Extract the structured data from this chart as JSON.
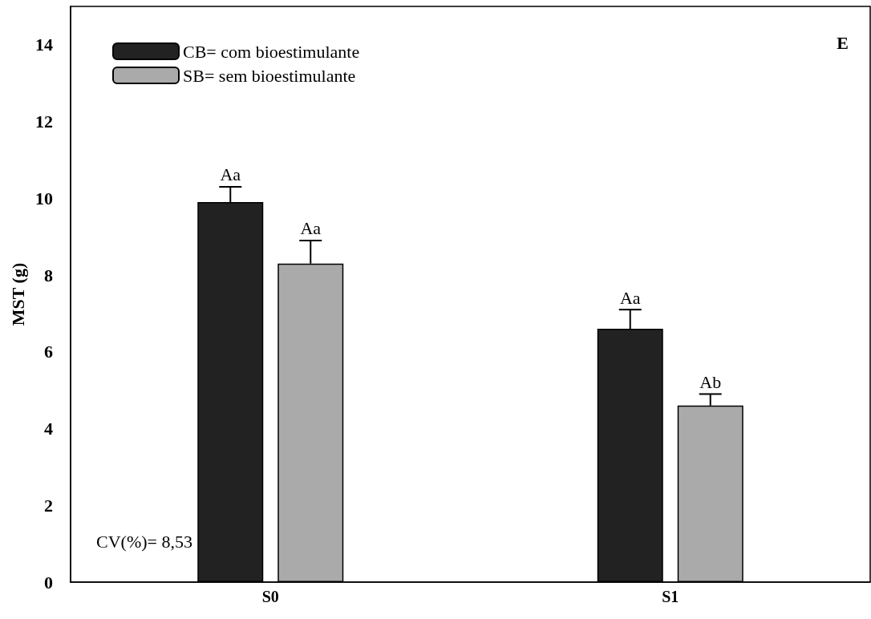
{
  "chart_data": {
    "type": "bar",
    "ylabel": "MST (g)",
    "categories": [
      "S0",
      "S1"
    ],
    "series": [
      {
        "name": "CB= com bioestimulante",
        "color": "#222222",
        "values": [
          9.9,
          6.6
        ],
        "errors": [
          [
            9.9,
            10.3
          ],
          [
            6.6,
            7.1
          ]
        ],
        "value_labels": [
          "Aa",
          "Aa"
        ]
      },
      {
        "name": "SB= sem bioestimulante",
        "color": "#aaaaaa",
        "values": [
          8.3,
          4.6
        ],
        "errors": [
          [
            8.3,
            8.9
          ],
          [
            4.6,
            4.9
          ]
        ],
        "value_labels": [
          "Aa",
          "Ab"
        ]
      }
    ],
    "ylim": [
      0,
      15
    ],
    "yticks": [
      0,
      2,
      4,
      6,
      8,
      10,
      12,
      14
    ],
    "grid": false,
    "legend": "top left",
    "annotations": [
      "E",
      "CV(%)= 8,53"
    ]
  }
}
